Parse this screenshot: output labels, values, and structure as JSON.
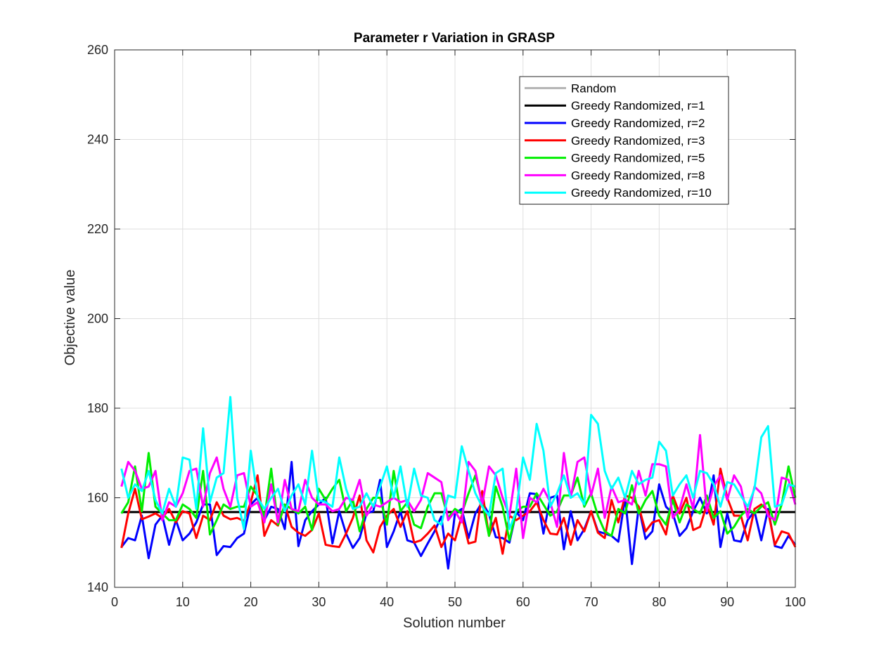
{
  "chart_data": {
    "type": "line",
    "title": "Parameter r Variation in GRASP",
    "xlabel": "Solution number",
    "ylabel": "Objective value",
    "xlim": [
      0,
      100
    ],
    "ylim": [
      140,
      260
    ],
    "xticks": [
      0,
      10,
      20,
      30,
      40,
      50,
      60,
      70,
      80,
      90,
      100
    ],
    "yticks": [
      140,
      160,
      180,
      200,
      220,
      240,
      260
    ],
    "grid": true,
    "legend_position": "top-right",
    "series": [
      {
        "name": "Random",
        "color": "#b3b3b3",
        "x": [
          1,
          100
        ],
        "values": [
          156.8,
          156.8
        ]
      },
      {
        "name": "Greedy Randomized, r=1",
        "color": "#000000",
        "x": [
          1,
          100
        ],
        "values": [
          156.8,
          156.8
        ]
      },
      {
        "name": "Greedy Randomized, r=2",
        "color": "#0000ff",
        "x": [
          1,
          2,
          3,
          4,
          5,
          6,
          7,
          8,
          9,
          10,
          11,
          12,
          13,
          14,
          15,
          16,
          17,
          18,
          19,
          20,
          21,
          22,
          23,
          24,
          25,
          26,
          27,
          28,
          29,
          30,
          31,
          32,
          33,
          34,
          35,
          36,
          37,
          38,
          39,
          40,
          41,
          42,
          43,
          44,
          45,
          46,
          47,
          48,
          49,
          50,
          51,
          52,
          53,
          54,
          55,
          56,
          57,
          58,
          59,
          60,
          61,
          62,
          63,
          64,
          65,
          66,
          67,
          68,
          69,
          70,
          71,
          72,
          73,
          74,
          75,
          76,
          77,
          78,
          79,
          80,
          81,
          82,
          83,
          84,
          85,
          86,
          87,
          88,
          89,
          90,
          91,
          92,
          93,
          94,
          95,
          96,
          97,
          98,
          99,
          100
        ],
        "values": [
          149,
          151,
          150.5,
          156,
          146.5,
          154,
          156,
          149.5,
          155,
          150.5,
          152,
          154.5,
          158.5,
          158.5,
          147.2,
          149.2,
          149,
          151,
          152,
          158.5,
          160,
          155,
          158,
          157.5,
          153,
          168,
          149.2,
          155,
          157,
          158.5,
          160,
          149.8,
          157,
          152,
          148.8,
          151,
          156.5,
          157,
          164,
          149,
          152.5,
          157,
          150.5,
          150,
          147,
          149.8,
          152.5,
          155.8,
          144.2,
          156.5,
          157.5,
          151,
          156.5,
          159,
          156.3,
          151.2,
          151,
          150,
          156.8,
          155,
          161,
          160.8,
          152,
          160,
          160.5,
          148.5,
          157,
          150.5,
          153,
          157,
          152.5,
          152,
          151.5,
          150.2,
          160,
          145.2,
          158,
          150.8,
          152.5,
          163,
          158,
          156.5,
          151.5,
          153.2,
          157,
          160,
          156.5,
          165,
          149,
          156.5,
          150.5,
          150.2,
          155,
          157,
          150.5,
          157.5,
          149.2,
          148.8,
          151.5,
          149.5
        ]
      },
      {
        "name": "Greedy Randomized, r=3",
        "color": "#ff0000",
        "x": [
          1,
          2,
          3,
          4,
          5,
          6,
          7,
          8,
          9,
          10,
          11,
          12,
          13,
          14,
          15,
          16,
          17,
          18,
          19,
          20,
          21,
          22,
          23,
          24,
          25,
          26,
          27,
          28,
          29,
          30,
          31,
          32,
          33,
          34,
          35,
          36,
          37,
          38,
          39,
          40,
          41,
          42,
          43,
          44,
          45,
          46,
          47,
          48,
          49,
          50,
          51,
          52,
          53,
          54,
          55,
          56,
          57,
          58,
          59,
          60,
          61,
          62,
          63,
          64,
          65,
          66,
          67,
          68,
          69,
          70,
          71,
          72,
          73,
          74,
          75,
          76,
          77,
          78,
          79,
          80,
          81,
          82,
          83,
          84,
          85,
          86,
          87,
          88,
          89,
          90,
          91,
          92,
          93,
          94,
          95,
          96,
          97,
          98,
          99,
          100
        ],
        "values": [
          148.8,
          156.5,
          162,
          155.2,
          155.8,
          156.5,
          155.5,
          157.5,
          154.5,
          157,
          156.5,
          151,
          156,
          155,
          159,
          156,
          155.2,
          155.5,
          154.8,
          159,
          165,
          151.5,
          155,
          153.8,
          158.5,
          153.5,
          152.2,
          151.5,
          152.8,
          156.5,
          149.5,
          149.2,
          149,
          152,
          155.5,
          160.5,
          150.5,
          147.8,
          153.5,
          156,
          157.5,
          153.5,
          157,
          150,
          150.5,
          152,
          153.8,
          149,
          152,
          150.5,
          156,
          149.8,
          150.2,
          161.5,
          151.5,
          155.5,
          147.5,
          156,
          155,
          156,
          157,
          159,
          155,
          152,
          151.8,
          155.5,
          149.5,
          155,
          152.5,
          157,
          152.2,
          151,
          159.5,
          154.5,
          160.5,
          160,
          158,
          152.5,
          154.5,
          155,
          151.8,
          160.5,
          156.5,
          160,
          152.8,
          153.5,
          158.5,
          154,
          166.5,
          160,
          156,
          156,
          150.5,
          157.5,
          158.5,
          157,
          149.5,
          152.5,
          152,
          149
        ]
      },
      {
        "name": "Greedy Randomized, r=5",
        "color": "#00ee00",
        "x": [
          1,
          2,
          3,
          4,
          5,
          6,
          7,
          8,
          9,
          10,
          11,
          12,
          13,
          14,
          15,
          16,
          17,
          18,
          19,
          20,
          21,
          22,
          23,
          24,
          25,
          26,
          27,
          28,
          29,
          30,
          31,
          32,
          33,
          34,
          35,
          36,
          37,
          38,
          39,
          40,
          41,
          42,
          43,
          44,
          45,
          46,
          47,
          48,
          49,
          50,
          51,
          52,
          53,
          54,
          55,
          56,
          57,
          58,
          59,
          60,
          61,
          62,
          63,
          64,
          65,
          66,
          67,
          68,
          69,
          70,
          71,
          72,
          73,
          74,
          75,
          76,
          77,
          78,
          79,
          80,
          81,
          82,
          83,
          84,
          85,
          86,
          87,
          88,
          89,
          90,
          91,
          92,
          93,
          94,
          95,
          96,
          97,
          98,
          99,
          100
        ],
        "values": [
          156.5,
          159,
          167,
          157,
          170,
          158,
          156.5,
          155,
          155,
          158.5,
          157.5,
          155.5,
          166,
          151.8,
          155,
          158.5,
          157.5,
          158,
          158,
          162.5,
          160.5,
          155.5,
          166.5,
          154,
          158.5,
          157.5,
          156.5,
          158,
          152.8,
          162,
          159.5,
          162,
          164,
          157,
          159.5,
          152.5,
          157.5,
          160,
          160,
          154,
          166,
          157,
          159,
          154,
          153.2,
          158,
          161,
          161,
          155.5,
          157.5,
          156.5,
          161,
          165,
          159,
          151.5,
          162.5,
          158,
          150.5,
          157,
          158,
          158,
          161,
          158.5,
          156,
          157,
          160.5,
          160.5,
          164.5,
          158,
          161,
          156,
          152.5,
          151.5,
          157.5,
          156.5,
          162.8,
          156.5,
          159.5,
          161.5,
          156,
          154,
          159.5,
          154.5,
          158.5,
          157.5,
          156.5,
          160.5,
          155.5,
          157,
          152,
          153.5,
          156,
          157.5,
          156.5,
          158,
          159,
          154,
          158.5,
          167,
          160
        ]
      },
      {
        "name": "Greedy Randomized, r=8",
        "color": "#ff00ff",
        "x": [
          1,
          2,
          3,
          4,
          5,
          6,
          7,
          8,
          9,
          10,
          11,
          12,
          13,
          14,
          15,
          16,
          17,
          18,
          19,
          20,
          21,
          22,
          23,
          24,
          25,
          26,
          27,
          28,
          29,
          30,
          31,
          32,
          33,
          34,
          35,
          36,
          37,
          38,
          39,
          40,
          41,
          42,
          43,
          44,
          45,
          46,
          47,
          48,
          49,
          50,
          51,
          52,
          53,
          54,
          55,
          56,
          57,
          58,
          59,
          60,
          61,
          62,
          63,
          64,
          65,
          66,
          67,
          68,
          69,
          70,
          71,
          72,
          73,
          74,
          75,
          76,
          77,
          78,
          79,
          80,
          81,
          82,
          83,
          84,
          85,
          86,
          87,
          88,
          89,
          90,
          91,
          92,
          93,
          94,
          95,
          96,
          97,
          98,
          99,
          100
        ],
        "values": [
          162.5,
          168,
          166,
          162,
          162.5,
          166,
          155,
          159,
          158,
          161,
          166,
          166.5,
          158,
          165.5,
          169,
          162,
          158,
          165,
          165.5,
          158,
          159,
          154.5,
          163,
          154.5,
          164,
          157.5,
          157,
          164,
          160,
          158.5,
          158.5,
          157,
          157.5,
          160,
          159.5,
          164,
          156,
          158.5,
          158,
          159,
          160,
          159,
          159.5,
          157,
          159.5,
          165.5,
          164.5,
          163.5,
          155,
          157,
          154.5,
          168,
          166,
          158.5,
          167,
          165,
          160,
          156,
          166.5,
          151,
          160,
          159,
          162,
          159,
          153.5,
          170,
          160,
          168,
          169,
          160.5,
          166.5,
          155.5,
          162.5,
          159,
          159.5,
          158.5,
          166,
          160.5,
          167.5,
          167.5,
          167,
          155.5,
          157.5,
          163,
          157.5,
          174,
          157,
          162.5,
          165,
          159.5,
          165,
          162.5,
          155.5,
          162.5,
          161,
          156,
          155,
          164.5,
          164,
          158.5
        ]
      },
      {
        "name": "Greedy Randomized, r=10",
        "color": "#00ffff",
        "x": [
          1,
          2,
          3,
          4,
          5,
          6,
          7,
          8,
          9,
          10,
          11,
          12,
          13,
          14,
          15,
          16,
          17,
          18,
          19,
          20,
          21,
          22,
          23,
          24,
          25,
          26,
          27,
          28,
          29,
          30,
          31,
          32,
          33,
          34,
          35,
          36,
          37,
          38,
          39,
          40,
          41,
          42,
          43,
          44,
          45,
          46,
          47,
          48,
          49,
          50,
          51,
          52,
          53,
          54,
          55,
          56,
          57,
          58,
          59,
          60,
          61,
          62,
          63,
          64,
          65,
          66,
          67,
          68,
          69,
          70,
          71,
          72,
          73,
          74,
          75,
          76,
          77,
          78,
          79,
          80,
          81,
          82,
          83,
          84,
          85,
          86,
          87,
          88,
          89,
          90,
          91,
          92,
          93,
          94,
          95,
          96,
          97,
          98,
          99,
          100
        ],
        "values": [
          166.5,
          160,
          163,
          161.5,
          166,
          159.5,
          156.5,
          162,
          158,
          169,
          168.5,
          157.5,
          175.5,
          159,
          164.5,
          165.5,
          182.5,
          160,
          153,
          170.5,
          160,
          157.5,
          160,
          162,
          157,
          160.5,
          163,
          158.5,
          170.5,
          159.5,
          159,
          158,
          169,
          162,
          157.5,
          158,
          161,
          158,
          162.5,
          167,
          160,
          167,
          158,
          166.5,
          160.5,
          160,
          155,
          154,
          160.5,
          160,
          171.5,
          166,
          161,
          158,
          156,
          165.5,
          166.5,
          153,
          157,
          169,
          164,
          176.5,
          170.5,
          158,
          161,
          165,
          160,
          161,
          158.5,
          178.5,
          176.5,
          166,
          162,
          164.5,
          160,
          166,
          163,
          164,
          164.5,
          172.5,
          170.5,
          160.5,
          163,
          165,
          160,
          166,
          165.5,
          163,
          158,
          163.5,
          163,
          160.5,
          158,
          162,
          173.5,
          176,
          158,
          158.5,
          163,
          162.5
        ]
      }
    ]
  }
}
